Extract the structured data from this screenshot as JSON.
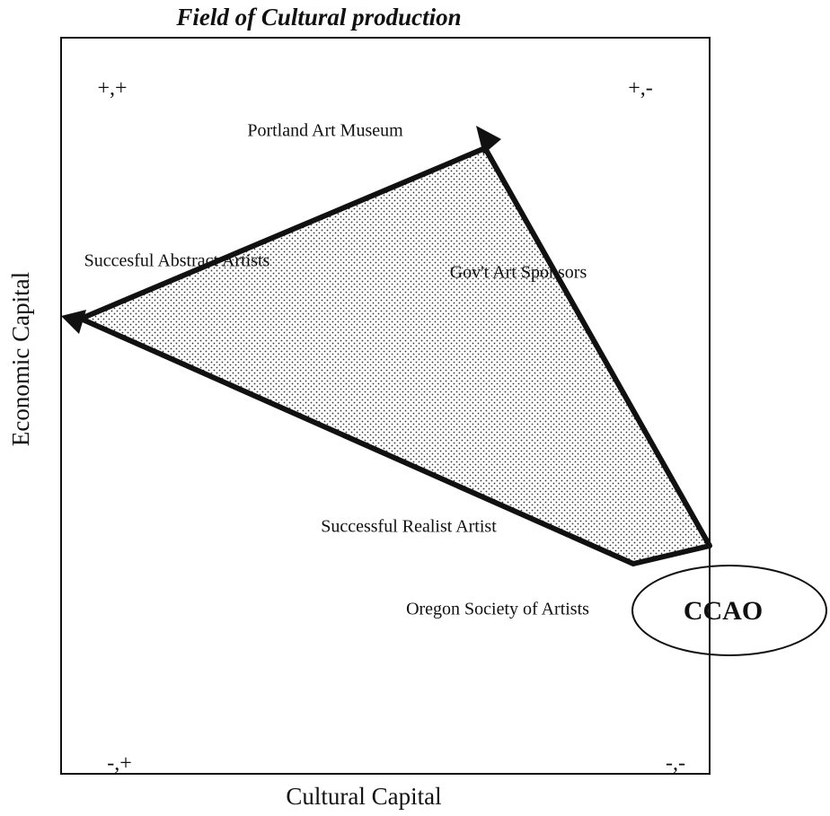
{
  "title": "Field of Cultural production",
  "axes": {
    "x_label": "Cultural Capital",
    "y_label": "Economic  Capital"
  },
  "quadrants": [
    "+,+",
    "+,-",
    "-,+",
    "-,-"
  ],
  "nodes": [
    "Portland Art Museum",
    "Succesful Abstract Artists",
    "Gov't Art Sponsors",
    "Successful Realist Artist",
    "Oregon Society of Artists"
  ],
  "focus": "CCAO"
}
